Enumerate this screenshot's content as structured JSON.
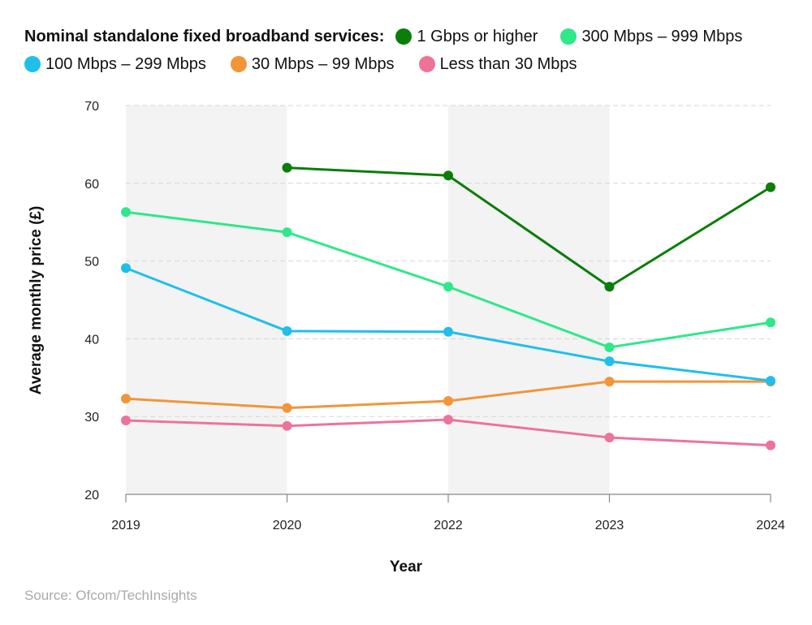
{
  "legend": {
    "title": "Nominal standalone fixed broadband services:"
  },
  "chart_data": {
    "type": "line",
    "title": "Nominal standalone fixed broadband services:",
    "xlabel": "Year",
    "ylabel": "Average monthly price (£)",
    "categories": [
      "2019",
      "2020",
      "2022",
      "2023",
      "2024"
    ],
    "ylim": [
      20,
      70
    ],
    "yticks": [
      20,
      30,
      40,
      50,
      60,
      70
    ],
    "grid": true,
    "shaded_bands": [
      [
        "2019",
        "2020"
      ],
      [
        "2022",
        "2023"
      ]
    ],
    "series": [
      {
        "name": "1 Gbps or higher",
        "color": "#0a7d0a",
        "values": [
          null,
          62,
          61,
          46.7,
          59.5
        ]
      },
      {
        "name": "300 Mbps – 999 Mbps",
        "color": "#2ee88a",
        "values": [
          56.3,
          53.7,
          46.7,
          38.9,
          42.1
        ]
      },
      {
        "name": "100 Mbps – 299 Mbps",
        "color": "#1fbfea",
        "values": [
          49.1,
          41,
          40.9,
          37.1,
          34.6
        ]
      },
      {
        "name": "30 Mbps – 99 Mbps",
        "color": "#f2953a",
        "values": [
          32.3,
          31.1,
          32,
          34.5,
          34.5
        ]
      },
      {
        "name": "Less than 30 Mbps",
        "color": "#ee7399",
        "values": [
          29.5,
          28.8,
          29.6,
          27.3,
          26.3
        ]
      }
    ]
  },
  "source": "Source: Ofcom/TechInsights"
}
